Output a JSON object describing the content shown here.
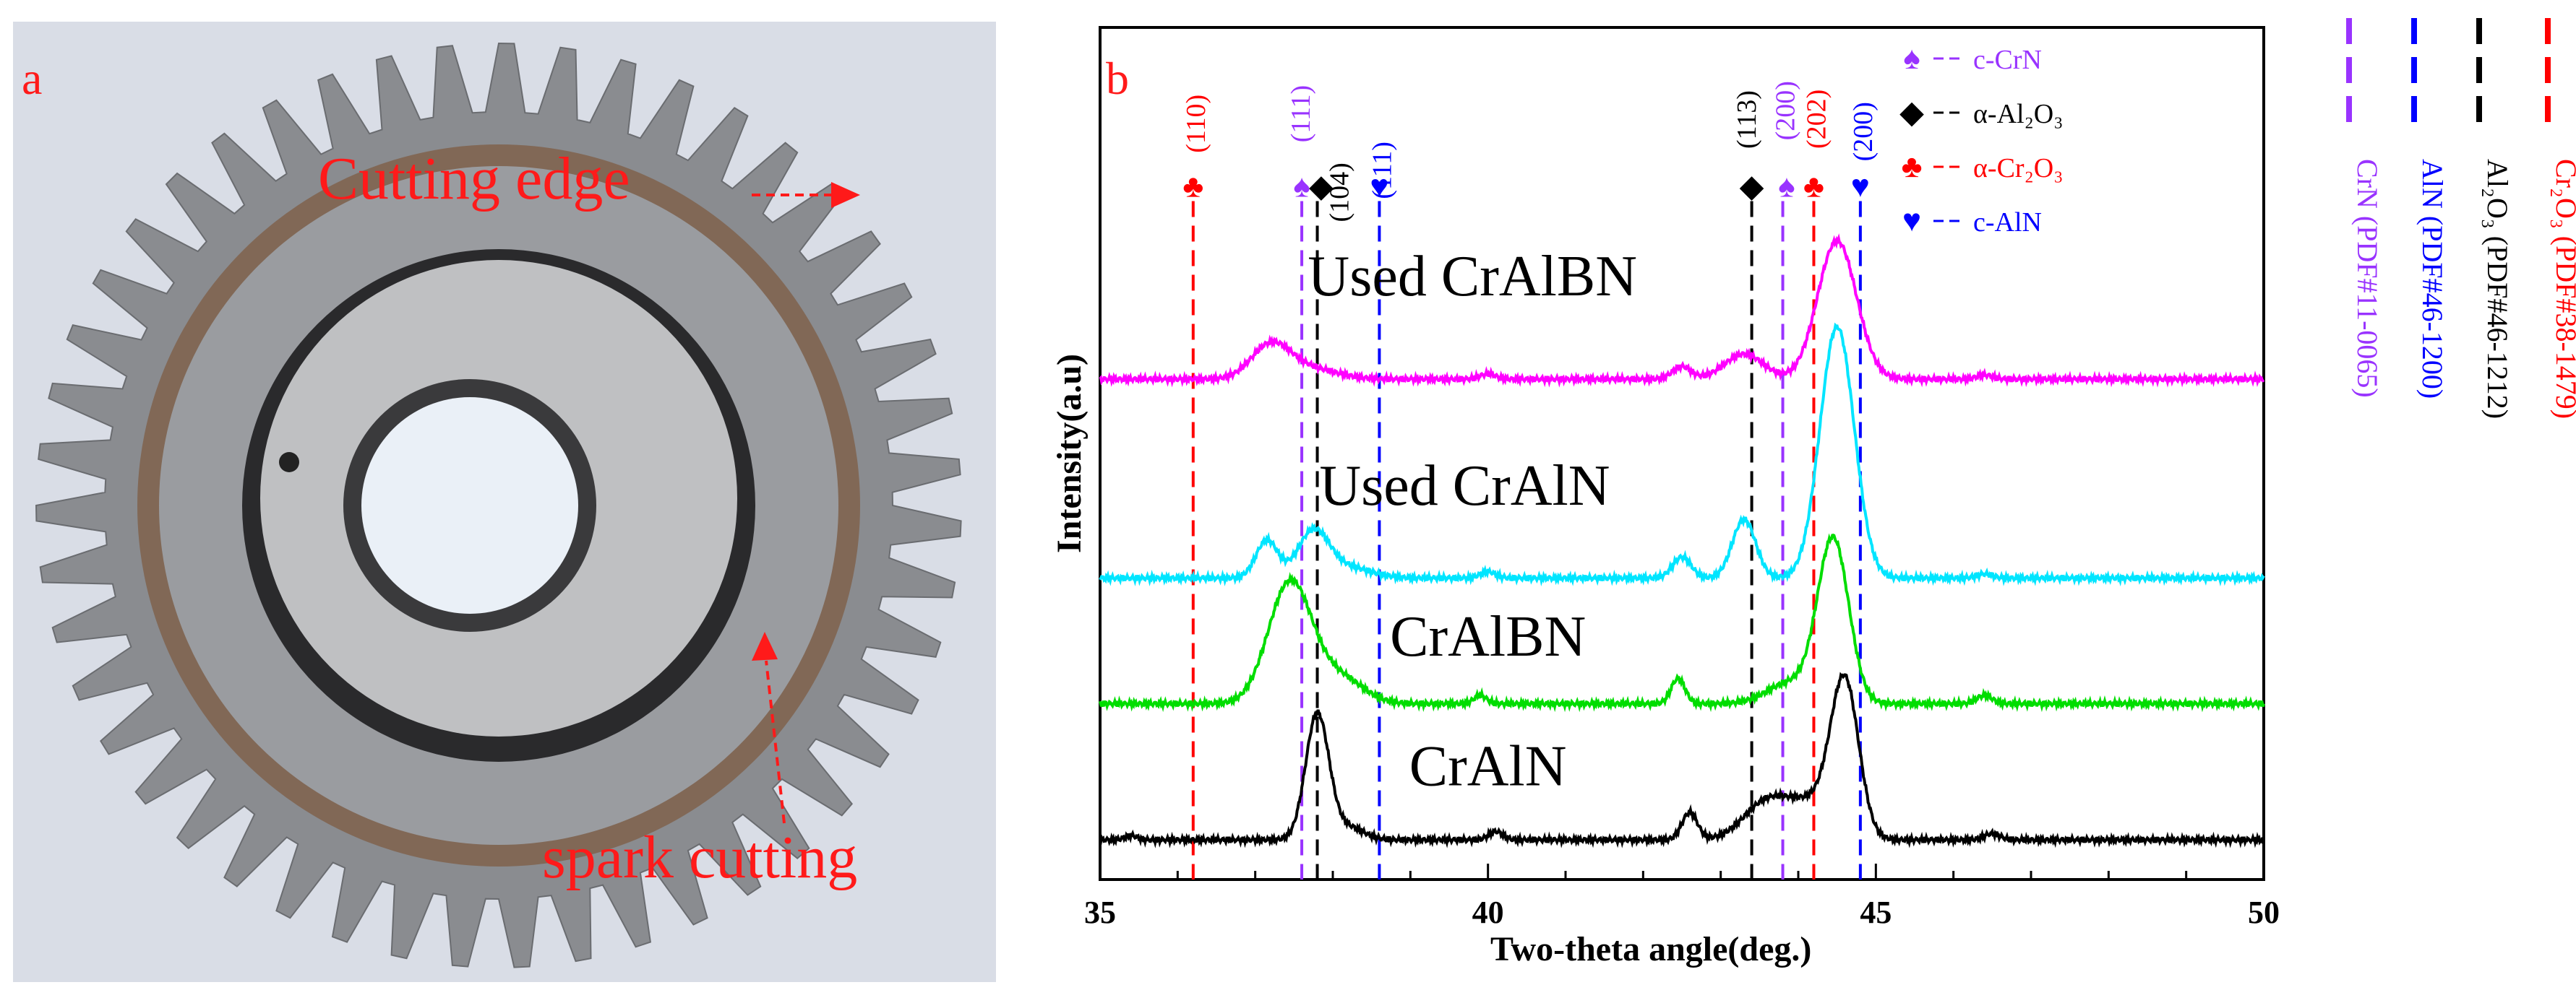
{
  "panel_a": {
    "label": "a",
    "annotations": {
      "cutting_edge": "Cutting edge",
      "spark_cutting": "spark cutting"
    },
    "colors": {
      "annotation": "#ff1a1a",
      "background": "#d9dde6",
      "gear_steel": "#8a8c90",
      "oxide": "#7a4a26"
    }
  },
  "chart_data": {
    "type": "line",
    "panel_label": "b",
    "xlabel": "Two-theta angle(deg.)",
    "ylabel": "Intensity(a.u)",
    "xlim": [
      35,
      50
    ],
    "xticks": [
      35,
      40,
      45,
      50
    ],
    "tick_labels": [
      "35",
      "40",
      "45",
      "50"
    ],
    "series": [
      {
        "name": "Used CrAlBN",
        "color": "#ff00ff",
        "offset": 2.2,
        "peaks": [
          [
            37.2,
            0.16,
            0.25
          ],
          [
            37.7,
            0.05,
            0.35
          ],
          [
            40.0,
            0.025,
            0.1
          ],
          [
            42.5,
            0.06,
            0.12
          ],
          [
            43.3,
            0.12,
            0.25
          ],
          [
            44.5,
            0.66,
            0.25
          ],
          [
            46.4,
            0.02,
            0.1
          ]
        ]
      },
      {
        "name": "Used CrAlN",
        "color": "#00e5ff",
        "offset": 1.25,
        "peaks": [
          [
            37.15,
            0.18,
            0.14
          ],
          [
            37.75,
            0.22,
            0.2
          ],
          [
            38.2,
            0.05,
            0.3
          ],
          [
            40.0,
            0.03,
            0.1
          ],
          [
            42.5,
            0.1,
            0.12
          ],
          [
            43.3,
            0.28,
            0.15
          ],
          [
            44.5,
            1.2,
            0.22
          ],
          [
            46.4,
            0.02,
            0.1
          ]
        ]
      },
      {
        "name": "CrAlBN",
        "color": "#00dd00",
        "offset": 0.65,
        "peaks": [
          [
            37.45,
            0.58,
            0.28
          ],
          [
            38.1,
            0.12,
            0.3
          ],
          [
            39.9,
            0.04,
            0.08
          ],
          [
            42.45,
            0.12,
            0.09
          ],
          [
            43.9,
            0.1,
            0.3
          ],
          [
            44.45,
            0.78,
            0.2
          ],
          [
            46.4,
            0.04,
            0.1
          ]
        ]
      },
      {
        "name": "CrAlN",
        "color": "#000000",
        "offset": 0.0,
        "peaks": [
          [
            35.4,
            0.02,
            0.08
          ],
          [
            37.8,
            0.6,
            0.15
          ],
          [
            38.2,
            0.06,
            0.2
          ],
          [
            40.1,
            0.04,
            0.09
          ],
          [
            42.6,
            0.13,
            0.1
          ],
          [
            43.6,
            0.18,
            0.3
          ],
          [
            44.2,
            0.16,
            0.3
          ],
          [
            44.6,
            0.72,
            0.18
          ],
          [
            46.5,
            0.03,
            0.1
          ]
        ]
      }
    ],
    "series_label_pos": [
      [
        39.8,
        2.6
      ],
      [
        39.7,
        1.6
      ],
      [
        40.0,
        0.88
      ],
      [
        40.0,
        0.26
      ]
    ],
    "reference_lines": [
      {
        "phase": "CrN",
        "color": "#9933ff",
        "x": [
          37.6,
          43.8
        ],
        "labels": [
          "(111)",
          "(200)"
        ]
      },
      {
        "phase": "AlN",
        "color": "#0000ff",
        "x": [
          38.6,
          44.8
        ],
        "labels": [
          "(111)",
          "(200)"
        ]
      },
      {
        "phase": "Al2O3",
        "color": "#000000",
        "x": [
          37.8,
          43.4
        ],
        "labels": [
          "(104)",
          "(113)"
        ]
      },
      {
        "phase": "Cr2O3",
        "color": "#ff0000",
        "x": [
          36.2,
          44.2
        ],
        "labels": [
          "(110)",
          "(202)"
        ]
      }
    ],
    "symbols": [
      {
        "x": 36.2,
        "glyph": "♣",
        "color": "#ff0000"
      },
      {
        "x": 37.6,
        "glyph": "♠",
        "color": "#9933ff"
      },
      {
        "x": 37.85,
        "glyph": "◆",
        "color": "#000000"
      },
      {
        "x": 38.6,
        "glyph": "♥",
        "color": "#0000ff"
      },
      {
        "x": 43.4,
        "glyph": "◆",
        "color": "#000000"
      },
      {
        "x": 43.85,
        "glyph": "♠",
        "color": "#9933ff"
      },
      {
        "x": 44.2,
        "glyph": "♣",
        "color": "#ff0000"
      },
      {
        "x": 44.8,
        "glyph": "♥",
        "color": "#0000ff"
      }
    ],
    "peak_labels": [
      {
        "text": "(110)",
        "x": 36.35,
        "y": 3.28,
        "color": "#ff0000",
        "vertical": true
      },
      {
        "text": "(111)",
        "x": 37.7,
        "y": 3.33,
        "color": "#9933ff",
        "vertical": true
      },
      {
        "text": "(104)",
        "x": 38.2,
        "y": 2.95,
        "color": "#000000",
        "vertical": true
      },
      {
        "text": "(111)",
        "x": 38.75,
        "y": 3.06,
        "color": "#0000ff",
        "vertical": true
      },
      {
        "text": "(113)",
        "x": 43.45,
        "y": 3.3,
        "color": "#000000",
        "vertical": true
      },
      {
        "text": "(200)",
        "x": 43.95,
        "y": 3.34,
        "color": "#9933ff",
        "vertical": true
      },
      {
        "text": "(202)",
        "x": 44.35,
        "y": 3.3,
        "color": "#ff0000",
        "vertical": true
      },
      {
        "text": "(200)",
        "x": 44.95,
        "y": 3.24,
        "color": "#0000ff",
        "vertical": true
      }
    ],
    "legend": [
      {
        "glyph": "♠",
        "color": "#9933ff",
        "label": "c-CrN"
      },
      {
        "glyph": "◆",
        "color": "#000000",
        "label": "α-Al₂O₃"
      },
      {
        "glyph": "♣",
        "color": "#ff0000",
        "label": "α-Cr₂O₃"
      },
      {
        "glyph": "♥",
        "color": "#0000ff",
        "label": "c-AlN"
      }
    ],
    "pdf_legend": [
      {
        "label": "CrN (PDF#11-0065)",
        "color": "#9933ff"
      },
      {
        "label": "AlN (PDF#46-1200)",
        "color": "#0000ff"
      },
      {
        "label": "Al₂O₃ (PDF#46-1212)",
        "color": "#000000"
      },
      {
        "label": "Cr₂O₃ (PDF#38-1479)",
        "color": "#ff0000"
      }
    ],
    "grid": false
  }
}
